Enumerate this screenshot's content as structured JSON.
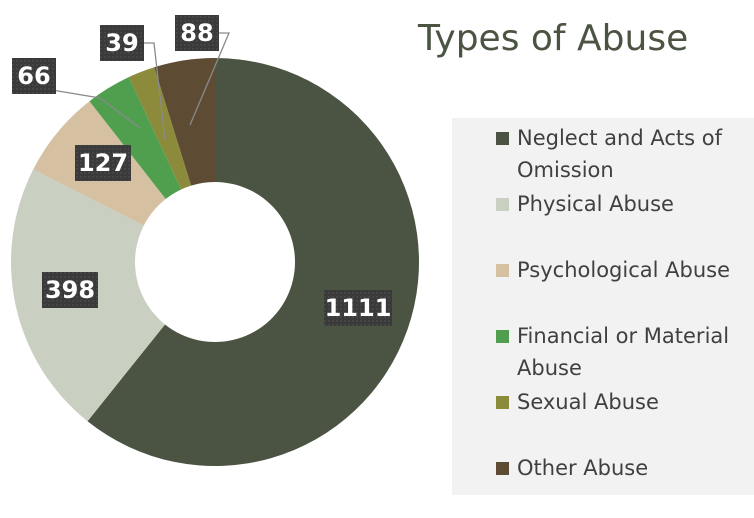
{
  "chart_data": {
    "type": "donut",
    "title": "Types of Abuse",
    "categories": [
      "Neglect and Acts of Omission",
      "Physical Abuse",
      "Psychological Abuse",
      "Financial or Material Abuse",
      "Sexual Abuse",
      "Other Abuse"
    ],
    "values": [
      1111,
      398,
      127,
      66,
      39,
      88
    ],
    "colors": [
      "#4b5342",
      "#c9cfc1",
      "#d5c0a2",
      "#4f9f4f",
      "#8c8a3b",
      "#5d4b33"
    ],
    "legend": "right"
  }
}
